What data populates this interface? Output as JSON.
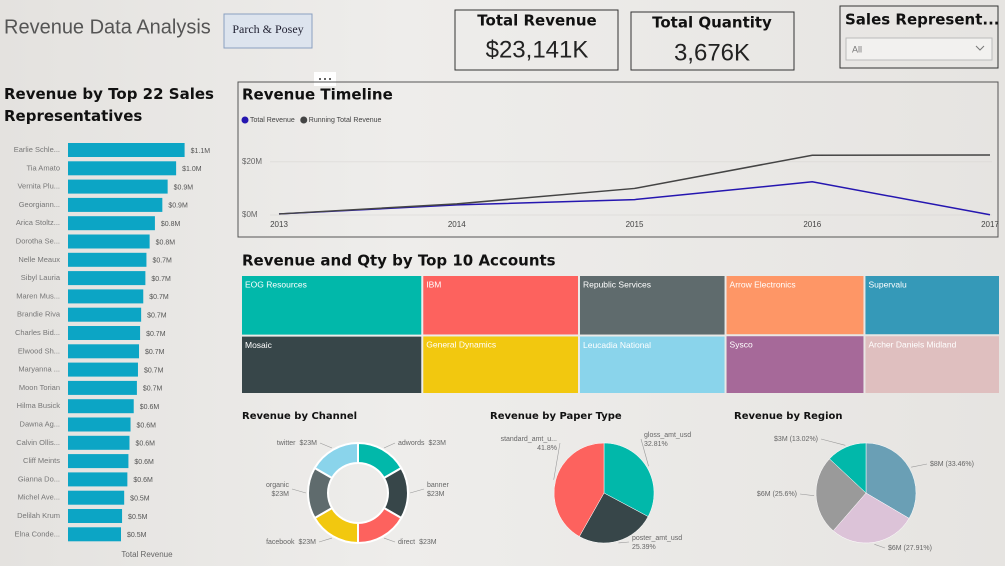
{
  "header": {
    "title": "Revenue Data Analysis",
    "logo": "Parch & Posey"
  },
  "cards": [
    {
      "title": "Total Revenue",
      "value": "$23,141K"
    },
    {
      "title": "Total Quantity",
      "value": "3,676K"
    }
  ],
  "slicer": {
    "title": "Sales Represent...",
    "selection": "All"
  },
  "chart_data": [
    {
      "type": "bar",
      "title": "Revenue by Top 22 Sales Representatives",
      "x_label": "Total Revenue",
      "color": "#0ca5c5",
      "categories": [
        "Earlie Schle...",
        "Tia Amato",
        "Vernita Plu...",
        "Georgiann...",
        "Arica Stoltz...",
        "Dorotha Se...",
        "Nelle Meaux",
        "Sibyl Lauria",
        "Maren Mus...",
        "Brandie Riva",
        "Charles Bid...",
        "Elwood Sh...",
        "Maryanna ...",
        "Moon Torian",
        "Hilma Busick",
        "Dawna Ag...",
        "Calvin Ollis...",
        "Cliff Meints",
        "Gianna Do...",
        "Michel Ave...",
        "Delilah Krum",
        "Elna Conde..."
      ],
      "values": [
        1.1,
        1.02,
        0.94,
        0.89,
        0.82,
        0.77,
        0.74,
        0.73,
        0.71,
        0.69,
        0.68,
        0.67,
        0.66,
        0.65,
        0.62,
        0.59,
        0.58,
        0.57,
        0.56,
        0.53,
        0.51,
        0.5
      ],
      "value_labels": [
        "$1.1M",
        "$1.0M",
        "$0.9M",
        "$0.9M",
        "$0.8M",
        "$0.8M",
        "$0.7M",
        "$0.7M",
        "$0.7M",
        "$0.7M",
        "$0.7M",
        "$0.7M",
        "$0.7M",
        "$0.7M",
        "$0.6M",
        "$0.6M",
        "$0.6M",
        "$0.6M",
        "$0.6M",
        "$0.5M",
        "$0.5M",
        "$0.5M"
      ]
    },
    {
      "type": "line",
      "title": "Revenue Timeline",
      "x": [
        2013,
        2014,
        2015,
        2016,
        2017
      ],
      "xlim": [
        2013,
        2017
      ],
      "xticks": [
        2013,
        2014,
        2015,
        2016,
        2017
      ],
      "ylim": [
        0,
        32
      ],
      "yticks": [
        {
          "value": 0,
          "label": "$0M"
        },
        {
          "value": 20,
          "label": "$20M"
        }
      ],
      "series": [
        {
          "name": "Total Revenue",
          "color": "#2516b0",
          "values": [
            0.4,
            3.8,
            5.8,
            12.5,
            0.1
          ]
        },
        {
          "name": "Running Total Revenue",
          "color": "#444444",
          "values": [
            0.4,
            4.2,
            10,
            22.5,
            22.6
          ]
        }
      ]
    },
    {
      "type": "treemap",
      "title": "Revenue and  Qty by Top 10 Accounts",
      "categories": [
        "EOG Resources",
        "Mosaic",
        "IBM",
        "General Dynamics",
        "Republic Services",
        "Leucadia National",
        "Arrow Electronics",
        "Sysco",
        "Supervalu",
        "Archer Daniels Midland"
      ],
      "values": [
        10.9,
        10.5,
        9.4,
        9.1,
        8.8,
        8.5,
        8.3,
        8.1,
        8.1,
        7.9
      ],
      "colors": [
        "#01b8aa",
        "#374649",
        "#fd625e",
        "#f2c80f",
        "#5f6b6d",
        "#8ad4eb",
        "#fe9666",
        "#a66999",
        "#3599b8",
        "#dfbfbf"
      ]
    },
    {
      "type": "donut",
      "title": "Revenue by Channel",
      "categories": [
        "adwords",
        "banner",
        "direct",
        "facebook",
        "organic",
        "twitter"
      ],
      "values": [
        23,
        23,
        23,
        23,
        23,
        23
      ],
      "value_labels": [
        "$23M",
        "$23M",
        "$23M",
        "$23M",
        "$23M",
        "$23M"
      ],
      "colors": [
        "#01b8aa",
        "#374649",
        "#fd625e",
        "#f2c80f",
        "#5f6b6d",
        "#8ad4eb"
      ]
    },
    {
      "type": "pie",
      "title": "Revenue by Paper Type",
      "categories": [
        "gloss_amt_usd",
        "poster_amt_usd",
        "standard_amt_u..."
      ],
      "values": [
        32.81,
        25.39,
        41.8
      ],
      "value_labels": [
        "32.81%",
        "25.39%",
        "41.8%"
      ],
      "colors": [
        "#01b8aa",
        "#374649",
        "#fd625e"
      ]
    },
    {
      "type": "pie",
      "title": "Revenue by Region",
      "values": [
        33.46,
        27.91,
        25.6,
        13.02
      ],
      "value_labels": [
        "$8M (33.46%)",
        "$6M (27.91%)",
        "$6M (25.6%)",
        "$3M (13.02%)"
      ],
      "colors": [
        "#6a9fb5",
        "#dcc3d8",
        "#9a9a9a",
        "#01b8aa"
      ]
    }
  ]
}
